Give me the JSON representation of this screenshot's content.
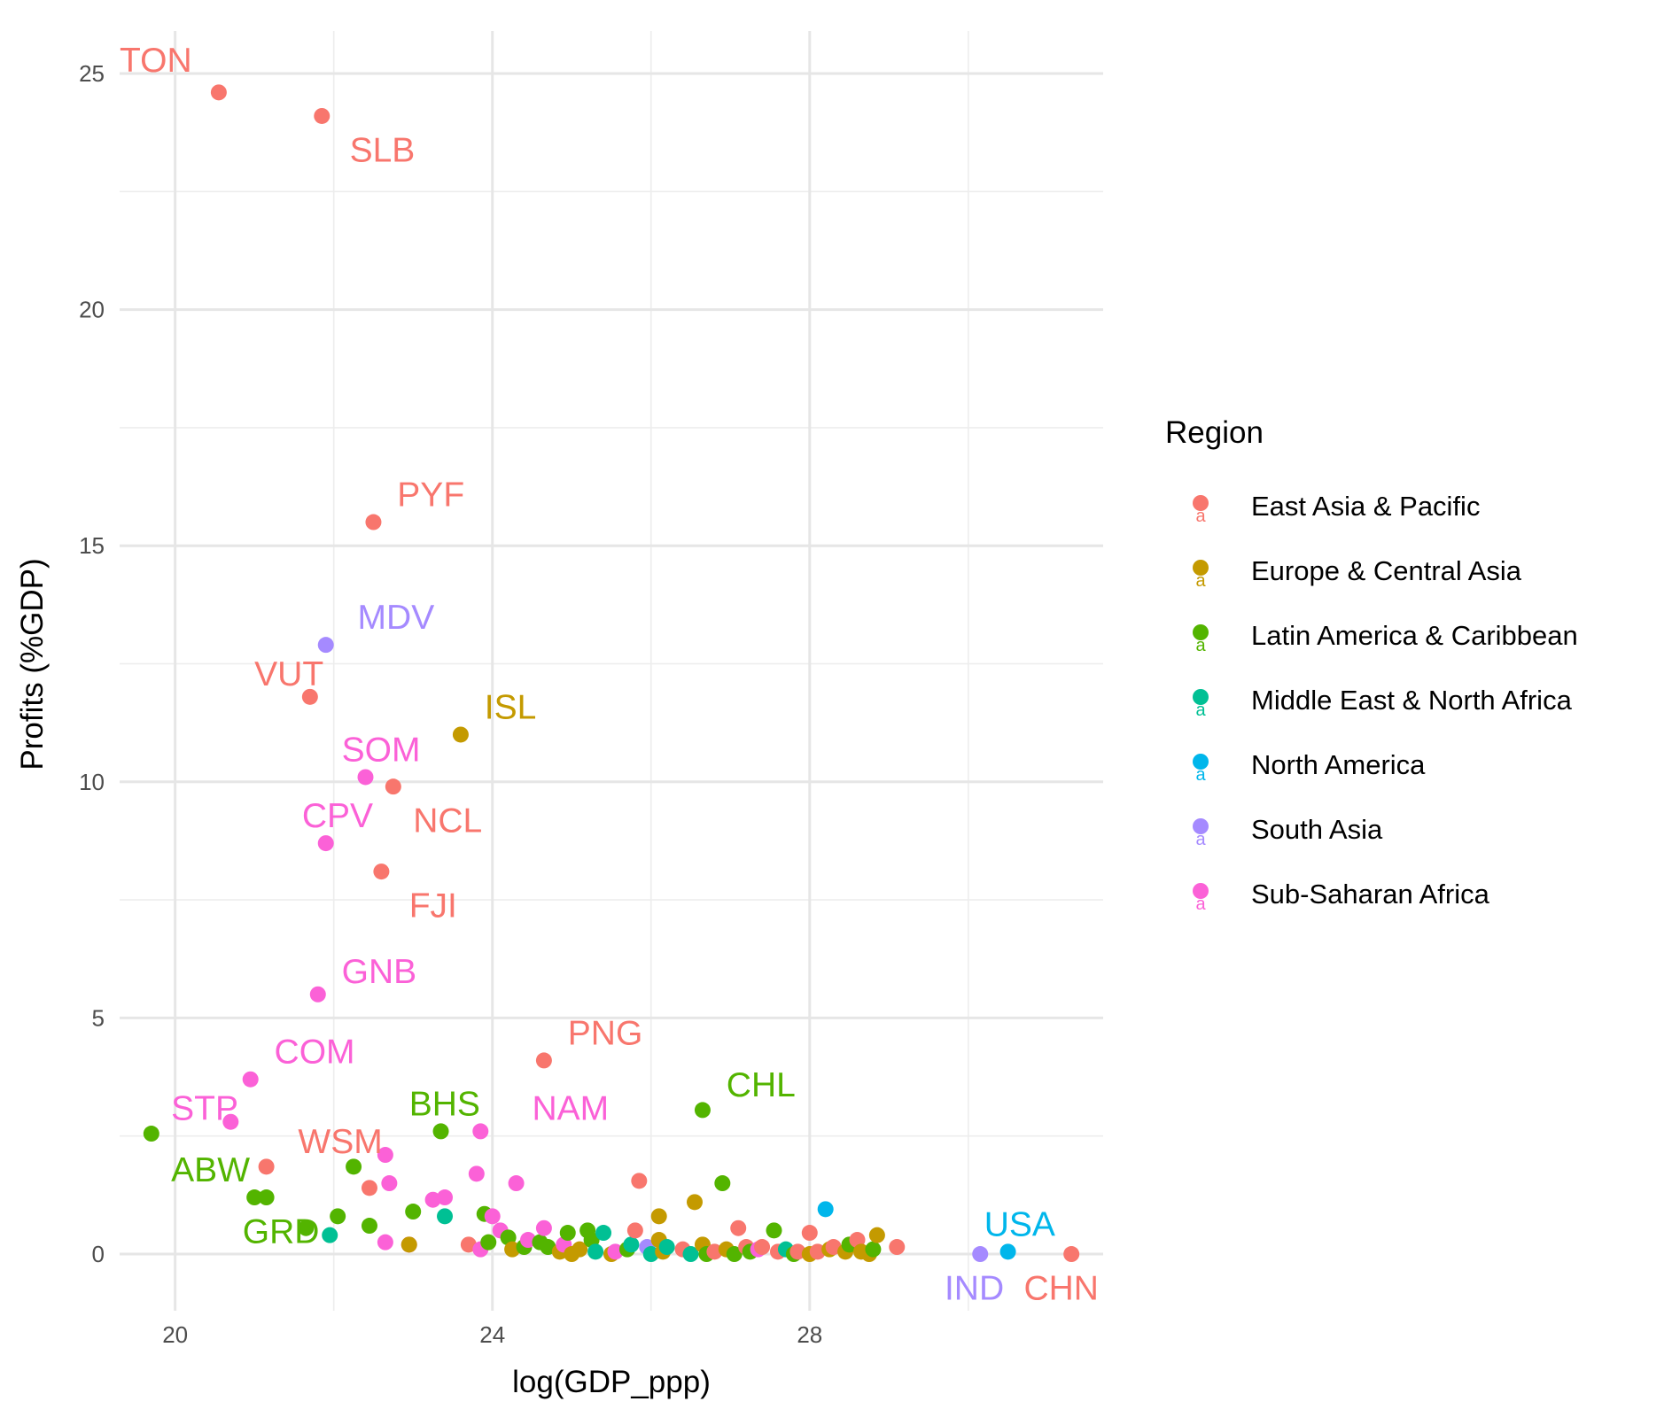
{
  "chart_data": {
    "type": "scatter",
    "title": "",
    "xlabel": "log(GDP_ppp)",
    "ylabel": "Profits (%GDP)",
    "xlim": [
      19.3,
      31.7
    ],
    "ylim": [
      -1.2,
      25.9
    ],
    "x_ticks": [
      20,
      24,
      28
    ],
    "y_ticks": [
      0,
      5,
      10,
      15,
      20,
      25
    ],
    "grid": true,
    "legend": {
      "title": "Region",
      "position": "right"
    },
    "regions": [
      {
        "name": "East Asia & Pacific",
        "color": "#F8766D"
      },
      {
        "name": "Europe & Central Asia",
        "color": "#C49A00"
      },
      {
        "name": "Latin America & Caribbean",
        "color": "#53B400"
      },
      {
        "name": "Middle East & North Africa",
        "color": "#00C094"
      },
      {
        "name": "North America",
        "color": "#00B6EB"
      },
      {
        "name": "South Asia",
        "color": "#A58AFF"
      },
      {
        "name": "Sub-Saharan Africa",
        "color": "#FB61D7"
      }
    ],
    "points": [
      {
        "x": 20.55,
        "y": 24.6,
        "r": 0,
        "label": "TON",
        "lx": 19.3,
        "ly": 25.3
      },
      {
        "x": 21.85,
        "y": 24.1,
        "r": 0,
        "label": "SLB",
        "lx": 22.2,
        "ly": 23.4
      },
      {
        "x": 22.5,
        "y": 15.5,
        "r": 0,
        "label": "PYF",
        "lx": 22.8,
        "ly": 16.1
      },
      {
        "x": 21.9,
        "y": 12.9,
        "r": 5,
        "label": "MDV",
        "lx": 22.3,
        "ly": 13.5
      },
      {
        "x": 21.7,
        "y": 11.8,
        "r": 0,
        "label": "VUT",
        "lx": 21.0,
        "ly": 12.3
      },
      {
        "x": 23.6,
        "y": 11.0,
        "r": 1,
        "label": "ISL",
        "lx": 23.9,
        "ly": 11.6
      },
      {
        "x": 22.4,
        "y": 10.1,
        "r": 6,
        "label": "SOM",
        "lx": 22.1,
        "ly": 10.7
      },
      {
        "x": 22.75,
        "y": 9.9,
        "r": 0,
        "label": "NCL",
        "lx": 23.0,
        "ly": 9.2
      },
      {
        "x": 21.9,
        "y": 8.7,
        "r": 6,
        "label": "CPV",
        "lx": 21.6,
        "ly": 9.3
      },
      {
        "x": 22.6,
        "y": 8.1,
        "r": 0,
        "label": "FJI",
        "lx": 22.95,
        "ly": 7.4
      },
      {
        "x": 21.8,
        "y": 5.5,
        "r": 6,
        "label": "GNB",
        "lx": 22.1,
        "ly": 6.0
      },
      {
        "x": 24.65,
        "y": 4.1,
        "r": 0,
        "label": "PNG",
        "lx": 24.95,
        "ly": 4.7
      },
      {
        "x": 20.95,
        "y": 3.7,
        "r": 6,
        "label": "COM",
        "lx": 21.25,
        "ly": 4.3
      },
      {
        "x": 26.65,
        "y": 3.05,
        "r": 2,
        "label": "CHL",
        "lx": 26.95,
        "ly": 3.6
      },
      {
        "x": 23.35,
        "y": 2.6,
        "r": 2,
        "label": "BHS",
        "lx": 22.95,
        "ly": 3.2
      },
      {
        "x": 23.85,
        "y": 2.6,
        "r": 6,
        "label": "NAM",
        "lx": 24.5,
        "ly": 3.1
      },
      {
        "x": 20.7,
        "y": 2.8,
        "r": 6,
        "label": "STP",
        "lx": 19.95,
        "ly": 3.1
      },
      {
        "x": 19.7,
        "y": 2.55,
        "r": 2,
        "label": "ABW",
        "lx": 19.95,
        "ly": 1.8
      },
      {
        "x": 21.15,
        "y": 1.85,
        "r": 0,
        "label": "WSM",
        "lx": 21.55,
        "ly": 2.4
      },
      {
        "x": 21.65,
        "y": 0.55,
        "r": 2,
        "label": "GRD",
        "lx": 20.85,
        "ly": 0.5
      },
      {
        "x": 28.2,
        "y": 0.95,
        "r": 4,
        "label": "",
        "lx": 0,
        "ly": 0
      },
      {
        "x": 30.5,
        "y": 0.05,
        "r": 4,
        "label": "USA",
        "lx": 30.2,
        "ly": 0.65
      },
      {
        "x": 30.15,
        "y": 0.0,
        "r": 5,
        "label": "IND",
        "lx": 29.7,
        "ly": -0.7
      },
      {
        "x": 31.3,
        "y": 0.0,
        "r": 0,
        "label": "CHN",
        "lx": 30.7,
        "ly": -0.7
      },
      {
        "x": 21.0,
        "y": 1.2,
        "r": 2,
        "label": "",
        "lx": 0,
        "ly": 0
      },
      {
        "x": 21.15,
        "y": 1.2,
        "r": 2,
        "label": "",
        "lx": 0,
        "ly": 0
      },
      {
        "x": 21.95,
        "y": 0.4,
        "r": 3,
        "label": "",
        "lx": 0,
        "ly": 0
      },
      {
        "x": 22.05,
        "y": 0.8,
        "r": 2,
        "label": "",
        "lx": 0,
        "ly": 0
      },
      {
        "x": 22.25,
        "y": 1.85,
        "r": 2,
        "label": "",
        "lx": 0,
        "ly": 0
      },
      {
        "x": 22.45,
        "y": 1.4,
        "r": 0,
        "label": "",
        "lx": 0,
        "ly": 0
      },
      {
        "x": 22.45,
        "y": 0.6,
        "r": 2,
        "label": "",
        "lx": 0,
        "ly": 0
      },
      {
        "x": 22.65,
        "y": 2.1,
        "r": 6,
        "label": "",
        "lx": 0,
        "ly": 0
      },
      {
        "x": 22.7,
        "y": 1.5,
        "r": 6,
        "label": "",
        "lx": 0,
        "ly": 0
      },
      {
        "x": 22.65,
        "y": 0.25,
        "r": 6,
        "label": "",
        "lx": 0,
        "ly": 0
      },
      {
        "x": 22.95,
        "y": 0.2,
        "r": 6,
        "label": "",
        "lx": 0,
        "ly": 0
      },
      {
        "x": 22.95,
        "y": 0.2,
        "r": 1,
        "label": "",
        "lx": 0,
        "ly": 0
      },
      {
        "x": 23.0,
        "y": 0.9,
        "r": 2,
        "label": "",
        "lx": 0,
        "ly": 0
      },
      {
        "x": 23.25,
        "y": 1.15,
        "r": 6,
        "label": "",
        "lx": 0,
        "ly": 0
      },
      {
        "x": 23.4,
        "y": 1.2,
        "r": 6,
        "label": "",
        "lx": 0,
        "ly": 0
      },
      {
        "x": 23.4,
        "y": 0.8,
        "r": 3,
        "label": "",
        "lx": 0,
        "ly": 0
      },
      {
        "x": 23.7,
        "y": 0.2,
        "r": 0,
        "label": "",
        "lx": 0,
        "ly": 0
      },
      {
        "x": 23.8,
        "y": 1.7,
        "r": 6,
        "label": "",
        "lx": 0,
        "ly": 0
      },
      {
        "x": 23.85,
        "y": 0.1,
        "r": 6,
        "label": "",
        "lx": 0,
        "ly": 0
      },
      {
        "x": 23.9,
        "y": 0.85,
        "r": 2,
        "label": "",
        "lx": 0,
        "ly": 0
      },
      {
        "x": 23.95,
        "y": 0.25,
        "r": 2,
        "label": "",
        "lx": 0,
        "ly": 0
      },
      {
        "x": 24.0,
        "y": 0.8,
        "r": 6,
        "label": "",
        "lx": 0,
        "ly": 0
      },
      {
        "x": 24.1,
        "y": 0.5,
        "r": 6,
        "label": "",
        "lx": 0,
        "ly": 0
      },
      {
        "x": 24.2,
        "y": 0.35,
        "r": 2,
        "label": "",
        "lx": 0,
        "ly": 0
      },
      {
        "x": 24.25,
        "y": 0.1,
        "r": 1,
        "label": "",
        "lx": 0,
        "ly": 0
      },
      {
        "x": 24.3,
        "y": 1.5,
        "r": 6,
        "label": "",
        "lx": 0,
        "ly": 0
      },
      {
        "x": 24.4,
        "y": 0.15,
        "r": 2,
        "label": "",
        "lx": 0,
        "ly": 0
      },
      {
        "x": 24.45,
        "y": 0.3,
        "r": 6,
        "label": "",
        "lx": 0,
        "ly": 0
      },
      {
        "x": 24.6,
        "y": 0.25,
        "r": 2,
        "label": "",
        "lx": 0,
        "ly": 0
      },
      {
        "x": 24.65,
        "y": 0.55,
        "r": 6,
        "label": "",
        "lx": 0,
        "ly": 0
      },
      {
        "x": 24.7,
        "y": 0.15,
        "r": 2,
        "label": "",
        "lx": 0,
        "ly": 0
      },
      {
        "x": 24.85,
        "y": 0.05,
        "r": 1,
        "label": "",
        "lx": 0,
        "ly": 0
      },
      {
        "x": 24.9,
        "y": 0.2,
        "r": 6,
        "label": "",
        "lx": 0,
        "ly": 0
      },
      {
        "x": 24.95,
        "y": 0.45,
        "r": 2,
        "label": "",
        "lx": 0,
        "ly": 0
      },
      {
        "x": 25.0,
        "y": 0.0,
        "r": 1,
        "label": "",
        "lx": 0,
        "ly": 0
      },
      {
        "x": 25.1,
        "y": 0.1,
        "r": 1,
        "label": "",
        "lx": 0,
        "ly": 0
      },
      {
        "x": 25.2,
        "y": 0.5,
        "r": 2,
        "label": "",
        "lx": 0,
        "ly": 0
      },
      {
        "x": 25.25,
        "y": 0.3,
        "r": 2,
        "label": "",
        "lx": 0,
        "ly": 0
      },
      {
        "x": 25.3,
        "y": 0.05,
        "r": 3,
        "label": "",
        "lx": 0,
        "ly": 0
      },
      {
        "x": 25.4,
        "y": 0.45,
        "r": 3,
        "label": "",
        "lx": 0,
        "ly": 0
      },
      {
        "x": 25.5,
        "y": 0.0,
        "r": 1,
        "label": "",
        "lx": 0,
        "ly": 0
      },
      {
        "x": 25.55,
        "y": 0.05,
        "r": 6,
        "label": "",
        "lx": 0,
        "ly": 0
      },
      {
        "x": 25.7,
        "y": 0.1,
        "r": 2,
        "label": "",
        "lx": 0,
        "ly": 0
      },
      {
        "x": 25.75,
        "y": 0.2,
        "r": 3,
        "label": "",
        "lx": 0,
        "ly": 0
      },
      {
        "x": 25.8,
        "y": 0.5,
        "r": 0,
        "label": "",
        "lx": 0,
        "ly": 0
      },
      {
        "x": 25.85,
        "y": 1.55,
        "r": 0,
        "label": "",
        "lx": 0,
        "ly": 0
      },
      {
        "x": 25.95,
        "y": 0.15,
        "r": 5,
        "label": "",
        "lx": 0,
        "ly": 0
      },
      {
        "x": 26.0,
        "y": 0.0,
        "r": 3,
        "label": "",
        "lx": 0,
        "ly": 0
      },
      {
        "x": 26.1,
        "y": 0.3,
        "r": 1,
        "label": "",
        "lx": 0,
        "ly": 0
      },
      {
        "x": 26.1,
        "y": 0.8,
        "r": 1,
        "label": "",
        "lx": 0,
        "ly": 0
      },
      {
        "x": 26.15,
        "y": 0.05,
        "r": 1,
        "label": "",
        "lx": 0,
        "ly": 0
      },
      {
        "x": 26.2,
        "y": 0.15,
        "r": 3,
        "label": "",
        "lx": 0,
        "ly": 0
      },
      {
        "x": 26.4,
        "y": 0.1,
        "r": 0,
        "label": "",
        "lx": 0,
        "ly": 0
      },
      {
        "x": 26.5,
        "y": 0.0,
        "r": 3,
        "label": "",
        "lx": 0,
        "ly": 0
      },
      {
        "x": 26.55,
        "y": 1.1,
        "r": 1,
        "label": "",
        "lx": 0,
        "ly": 0
      },
      {
        "x": 26.65,
        "y": 0.2,
        "r": 1,
        "label": "",
        "lx": 0,
        "ly": 0
      },
      {
        "x": 26.7,
        "y": 0.0,
        "r": 2,
        "label": "",
        "lx": 0,
        "ly": 0
      },
      {
        "x": 26.8,
        "y": 0.05,
        "r": 0,
        "label": "",
        "lx": 0,
        "ly": 0
      },
      {
        "x": 26.9,
        "y": 1.5,
        "r": 2,
        "label": "",
        "lx": 0,
        "ly": 0
      },
      {
        "x": 26.95,
        "y": 0.1,
        "r": 1,
        "label": "",
        "lx": 0,
        "ly": 0
      },
      {
        "x": 27.05,
        "y": 0.0,
        "r": 2,
        "label": "",
        "lx": 0,
        "ly": 0
      },
      {
        "x": 27.1,
        "y": 0.55,
        "r": 0,
        "label": "",
        "lx": 0,
        "ly": 0
      },
      {
        "x": 27.2,
        "y": 0.15,
        "r": 0,
        "label": "",
        "lx": 0,
        "ly": 0
      },
      {
        "x": 27.25,
        "y": 0.05,
        "r": 2,
        "label": "",
        "lx": 0,
        "ly": 0
      },
      {
        "x": 27.35,
        "y": 0.1,
        "r": 6,
        "label": "",
        "lx": 0,
        "ly": 0
      },
      {
        "x": 27.4,
        "y": 0.15,
        "r": 0,
        "label": "",
        "lx": 0,
        "ly": 0
      },
      {
        "x": 27.55,
        "y": 0.5,
        "r": 2,
        "label": "",
        "lx": 0,
        "ly": 0
      },
      {
        "x": 27.6,
        "y": 0.05,
        "r": 0,
        "label": "",
        "lx": 0,
        "ly": 0
      },
      {
        "x": 27.7,
        "y": 0.1,
        "r": 3,
        "label": "",
        "lx": 0,
        "ly": 0
      },
      {
        "x": 27.8,
        "y": 0.0,
        "r": 2,
        "label": "",
        "lx": 0,
        "ly": 0
      },
      {
        "x": 27.85,
        "y": 0.05,
        "r": 0,
        "label": "",
        "lx": 0,
        "ly": 0
      },
      {
        "x": 28.0,
        "y": 0.45,
        "r": 0,
        "label": "",
        "lx": 0,
        "ly": 0
      },
      {
        "x": 28.0,
        "y": 0.0,
        "r": 1,
        "label": "",
        "lx": 0,
        "ly": 0
      },
      {
        "x": 28.1,
        "y": 0.05,
        "r": 0,
        "label": "",
        "lx": 0,
        "ly": 0
      },
      {
        "x": 28.25,
        "y": 0.1,
        "r": 1,
        "label": "",
        "lx": 0,
        "ly": 0
      },
      {
        "x": 28.3,
        "y": 0.15,
        "r": 0,
        "label": "",
        "lx": 0,
        "ly": 0
      },
      {
        "x": 28.45,
        "y": 0.05,
        "r": 1,
        "label": "",
        "lx": 0,
        "ly": 0
      },
      {
        "x": 28.5,
        "y": 0.2,
        "r": 2,
        "label": "",
        "lx": 0,
        "ly": 0
      },
      {
        "x": 28.6,
        "y": 0.3,
        "r": 0,
        "label": "",
        "lx": 0,
        "ly": 0
      },
      {
        "x": 28.65,
        "y": 0.05,
        "r": 1,
        "label": "",
        "lx": 0,
        "ly": 0
      },
      {
        "x": 28.75,
        "y": 0.0,
        "r": 1,
        "label": "",
        "lx": 0,
        "ly": 0
      },
      {
        "x": 28.8,
        "y": 0.1,
        "r": 2,
        "label": "",
        "lx": 0,
        "ly": 0
      },
      {
        "x": 28.85,
        "y": 0.4,
        "r": 1,
        "label": "",
        "lx": 0,
        "ly": 0
      },
      {
        "x": 29.1,
        "y": 0.15,
        "r": 0,
        "label": "",
        "lx": 0,
        "ly": 0
      }
    ]
  }
}
